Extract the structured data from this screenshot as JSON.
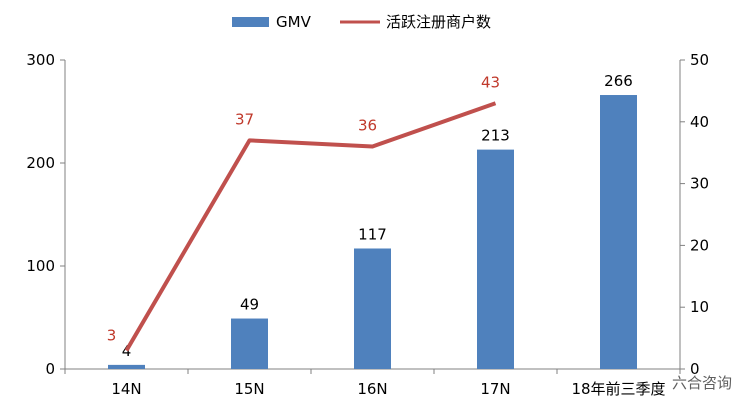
{
  "chart_data": {
    "type": "bar",
    "categories": [
      "14N",
      "15N",
      "16N",
      "17N",
      "18年前三季度"
    ],
    "series": [
      {
        "name": "GMV",
        "type": "bar",
        "axis": "left",
        "values": [
          4,
          49,
          117,
          213,
          266
        ]
      },
      {
        "name": "活跃注册商户数",
        "type": "line",
        "axis": "right",
        "values": [
          3,
          37,
          36,
          43,
          null
        ]
      }
    ],
    "ylim_left": [
      0,
      300
    ],
    "yticks_left": [
      0,
      100,
      200,
      300
    ],
    "ylim_right": [
      0,
      50
    ],
    "yticks_right": [
      0,
      10,
      20,
      30,
      40,
      50
    ],
    "legend_position": "top-center",
    "grid": false,
    "colors": {
      "bar": "#4f81bd",
      "line": "#c0504d",
      "line_label": "#c0392b"
    }
  },
  "watermark": "六合咨询"
}
